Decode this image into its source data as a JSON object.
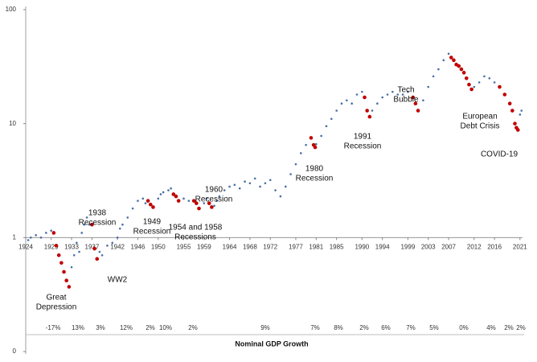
{
  "chart_data": {
    "type": "scatter",
    "log_y": true,
    "ylim": [
      0.1,
      100
    ],
    "yticks": [
      {
        "value": 0.1,
        "label": "0"
      },
      1,
      10,
      100
    ],
    "xlim": [
      1924,
      2021.5
    ],
    "xticks": [
      1924,
      1929,
      1933,
      1937,
      1942,
      1946,
      1950,
      1955,
      1959,
      1964,
      1968,
      1972,
      1977,
      1981,
      1985,
      1990,
      1994,
      1999,
      2003,
      2007,
      2012,
      2016,
      2021
    ],
    "series": [
      {
        "color": "#4a6fa5",
        "x": [
          1924.5,
          1925,
          1926,
          1927,
          1928,
          1929,
          1933,
          1933.5,
          1934,
          1934.5,
          1935,
          1935.5,
          1936,
          1936.5,
          1938.5,
          1939,
          1940,
          1941,
          1942,
          1942.5,
          1943,
          1944,
          1945,
          1946,
          1947,
          1947.5,
          1950,
          1950.5,
          1951,
          1952,
          1952.5,
          1955,
          1956,
          1959,
          1959.5,
          1961,
          1961.5,
          1962,
          1963,
          1964,
          1965,
          1966,
          1967,
          1968,
          1969,
          1970,
          1971,
          1972,
          1973,
          1974,
          1975,
          1976,
          1977,
          1978,
          1979,
          1981,
          1982,
          1983,
          1984,
          1985,
          1986,
          1987,
          1988,
          1989,
          1990,
          1992,
          1993,
          1994,
          1995,
          1996,
          1997,
          1998,
          1999,
          2002,
          2003,
          2004,
          2005,
          2006,
          2007,
          2012,
          2013,
          2014,
          2015,
          2016,
          2021,
          2021.3
        ],
        "values": [
          0.95,
          1.0,
          1.05,
          1.0,
          1.1,
          1.15,
          0.55,
          0.7,
          0.9,
          0.75,
          1.1,
          1.3,
          1.5,
          1.3,
          0.75,
          0.7,
          0.85,
          0.9,
          1.0,
          1.2,
          1.3,
          1.5,
          1.8,
          2.1,
          2.2,
          2.0,
          2.2,
          2.4,
          2.5,
          2.6,
          2.7,
          2.2,
          2.1,
          2.0,
          2.2,
          1.9,
          2.1,
          2.3,
          2.6,
          2.8,
          2.9,
          2.7,
          3.1,
          3.0,
          3.3,
          2.8,
          3.0,
          3.2,
          2.6,
          2.3,
          2.8,
          3.6,
          4.4,
          5.5,
          6.5,
          6.6,
          7.8,
          9.5,
          11,
          13,
          15,
          16,
          15,
          18,
          19,
          13,
          15,
          17,
          18,
          19,
          18,
          18,
          19,
          16,
          21,
          26,
          30,
          36,
          41,
          21,
          23,
          26,
          25,
          23,
          12,
          13
        ]
      },
      {
        "color": "#c00000",
        "x": [
          1929.5,
          1930,
          1930.5,
          1931,
          1931.5,
          1932,
          1932.5,
          1937,
          1937.5,
          1938,
          1948,
          1948.5,
          1949,
          1953,
          1953.5,
          1954,
          1957,
          1957.5,
          1958,
          1960,
          1960.5,
          1980,
          1980.5,
          1980.8,
          1990.5,
          1991,
          1991.5,
          2000,
          2000.5,
          2001,
          2007.5,
          2008,
          2008.5,
          2009,
          2009.5,
          2010,
          2010.5,
          2011,
          2011.5,
          2017,
          2018,
          2019,
          2019.5,
          2020,
          2020.3,
          2020.6
        ],
        "values": [
          1.1,
          0.85,
          0.7,
          0.6,
          0.5,
          0.42,
          0.37,
          1.3,
          0.8,
          0.65,
          2.1,
          1.95,
          1.85,
          2.4,
          2.3,
          2.1,
          2.1,
          2.0,
          1.8,
          2.0,
          1.85,
          7.5,
          6.5,
          6.2,
          17,
          13,
          11.5,
          17,
          15,
          13,
          38,
          36,
          33,
          32,
          30,
          28,
          25,
          22,
          20,
          21,
          18,
          15,
          13,
          10,
          9.2,
          8.8
        ]
      }
    ],
    "annotations": [
      {
        "lines": [
          "Great",
          "Depression"
        ]
      },
      {
        "lines": [
          "WW2"
        ]
      },
      {
        "lines": [
          "1938",
          "Recession"
        ]
      },
      {
        "lines": [
          "1949",
          "Recession"
        ]
      },
      {
        "lines": [
          "1954 and 1958",
          "Recessions"
        ]
      },
      {
        "lines": [
          "1960",
          "Recession"
        ]
      },
      {
        "lines": [
          "1980",
          "Recession"
        ]
      },
      {
        "lines": [
          "1991",
          "Recession"
        ]
      },
      {
        "lines": [
          "Tech",
          "Bubble"
        ]
      },
      {
        "lines": [
          "European",
          "Debt Crisis"
        ]
      },
      {
        "lines": [
          "COVID-19"
        ]
      }
    ],
    "growth": {
      "label": "Nominal GDP Growth",
      "values": [
        -17,
        13,
        3,
        12,
        2,
        10,
        2,
        9,
        7,
        8,
        2,
        6,
        7,
        5,
        0,
        4,
        2,
        2
      ],
      "value_labels": [
        "-17%",
        "13%",
        "3%",
        "12%",
        "2%",
        "10%",
        "2%",
        "9%",
        "7%",
        "8%",
        "2%",
        "6%",
        "7%",
        "5%",
        "0%",
        "4%",
        "2%",
        "2%"
      ],
      "colors": [
        "#c00000",
        "#4a7ab8",
        "#c00000",
        "#4a7ab8",
        "#c00000",
        "#4a7ab8",
        "#c00000",
        "#4a7ab8",
        "#c00000",
        "#4a7ab8",
        "#c00000",
        "#4a7ab8",
        "#4a7ab8",
        "#4a7ab8",
        "#c00000",
        "#4a7ab8",
        "#c00000",
        "#4a7ab8"
      ]
    }
  }
}
